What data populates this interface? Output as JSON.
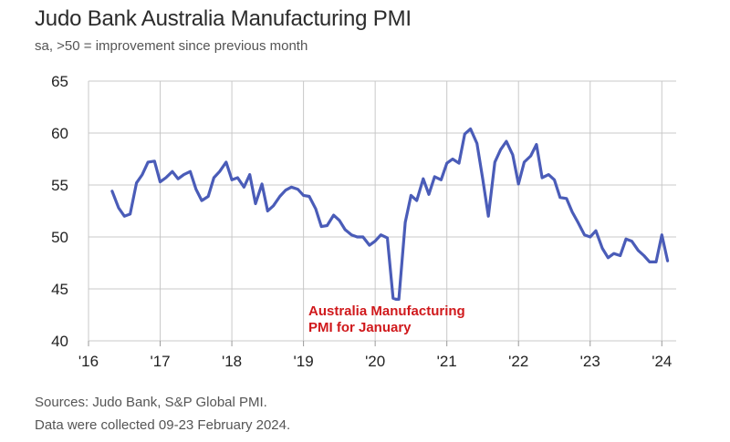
{
  "chart_data": {
    "type": "line",
    "title": "Judo Bank Australia Manufacturing PMI",
    "subtitle": "sa, >50 = improvement since previous month",
    "xlabel": "",
    "ylabel": "",
    "ylim": [
      40,
      65
    ],
    "yticks": [
      40,
      45,
      50,
      55,
      60,
      65
    ],
    "xlim": [
      2016,
      2024.2
    ],
    "xticks": [
      {
        "value": 2016,
        "label": "'16"
      },
      {
        "value": 2017,
        "label": "'17"
      },
      {
        "value": 2018,
        "label": "'18"
      },
      {
        "value": 2019,
        "label": "'19"
      },
      {
        "value": 2020,
        "label": "'20"
      },
      {
        "value": 2021,
        "label": "'21"
      },
      {
        "value": 2022,
        "label": "'22"
      },
      {
        "value": 2023,
        "label": "'23"
      },
      {
        "value": 2024,
        "label": "'24"
      }
    ],
    "grid": true,
    "annotation": {
      "line1": "Australia Manufacturing",
      "line2": "PMI for January"
    },
    "series": [
      {
        "name": "Australia Manufacturing PMI",
        "color": "#4a5cb8",
        "x": [
          2016.33,
          2016.42,
          2016.5,
          2016.58,
          2016.67,
          2016.75,
          2016.83,
          2016.92,
          2017.0,
          2017.08,
          2017.17,
          2017.25,
          2017.33,
          2017.42,
          2017.5,
          2017.58,
          2017.67,
          2017.75,
          2017.83,
          2017.92,
          2018.0,
          2018.08,
          2018.17,
          2018.25,
          2018.33,
          2018.42,
          2018.5,
          2018.58,
          2018.67,
          2018.75,
          2018.83,
          2018.92,
          2019.0,
          2019.08,
          2019.17,
          2019.25,
          2019.33,
          2019.42,
          2019.5,
          2019.58,
          2019.67,
          2019.75,
          2019.83,
          2019.92,
          2020.0,
          2020.08,
          2020.17,
          2020.25,
          2020.29,
          2020.33,
          2020.42,
          2020.5,
          2020.58,
          2020.67,
          2020.75,
          2020.83,
          2020.92,
          2021.0,
          2021.08,
          2021.17,
          2021.25,
          2021.33,
          2021.42,
          2021.5,
          2021.58,
          2021.67,
          2021.75,
          2021.83,
          2021.92,
          2022.0,
          2022.08,
          2022.17,
          2022.25,
          2022.33,
          2022.42,
          2022.5,
          2022.58,
          2022.67,
          2022.75,
          2022.83,
          2022.92,
          2023.0,
          2023.08,
          2023.17,
          2023.25,
          2023.33,
          2023.42,
          2023.5,
          2023.58,
          2023.67,
          2023.75,
          2023.83,
          2023.92,
          2024.0,
          2024.08
        ],
        "values": [
          54.4,
          52.8,
          52.0,
          52.2,
          55.2,
          56.0,
          57.2,
          57.3,
          55.3,
          55.7,
          56.3,
          55.6,
          56.0,
          56.3,
          54.6,
          53.5,
          53.9,
          55.7,
          56.3,
          57.2,
          55.5,
          55.7,
          54.8,
          56.0,
          53.2,
          55.1,
          52.5,
          53.0,
          53.9,
          54.5,
          54.8,
          54.6,
          54.0,
          53.9,
          52.7,
          51.0,
          51.1,
          52.1,
          51.6,
          50.7,
          50.2,
          50.0,
          50.0,
          49.2,
          49.6,
          50.2,
          49.9,
          44.1,
          44.0,
          44.0,
          51.4,
          54.0,
          53.5,
          55.6,
          54.1,
          55.8,
          55.5,
          57.1,
          57.5,
          57.1,
          59.9,
          60.4,
          59.0,
          55.6,
          52.0,
          57.2,
          58.4,
          59.2,
          57.9,
          55.1,
          57.2,
          57.8,
          58.9,
          55.7,
          56.0,
          55.5,
          53.8,
          53.7,
          52.4,
          51.4,
          50.2,
          50.0,
          50.6,
          48.9,
          48.0,
          48.4,
          48.2,
          49.8,
          49.6,
          48.7,
          48.2,
          47.6,
          47.6,
          50.2,
          47.7
        ]
      }
    ]
  },
  "footer": {
    "sources": "Sources: Judo Bank, S&P Global PMI.",
    "collected": "Data were collected 09-23 February 2024."
  }
}
